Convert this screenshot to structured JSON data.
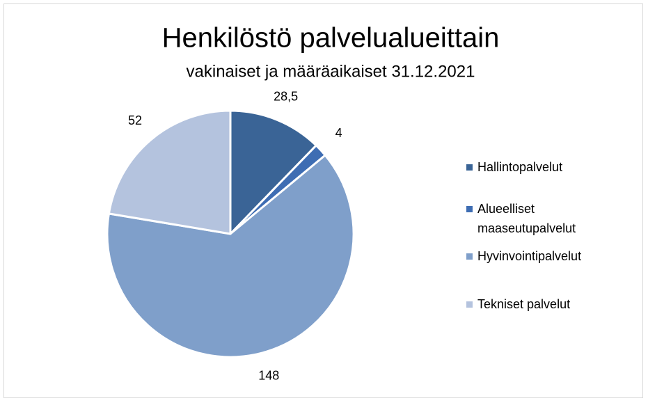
{
  "chart_data": {
    "type": "pie",
    "title": "Henkilöstö palvelualueittain",
    "subtitle": "vakinaiset ja määräaikaiset 31.12.2021",
    "categories": [
      "Hallintopalvelut",
      "Alueelliset maaseutupalvelut",
      "Hyvinvointipalvelut",
      "Tekniset palvelut"
    ],
    "values": [
      28.5,
      4,
      148,
      52
    ],
    "value_labels": [
      "28,5",
      "4",
      "148",
      "52"
    ],
    "colors": [
      "#3a6496",
      "#3e6db3",
      "#7f9fca",
      "#b4c3de"
    ],
    "legend": "right"
  }
}
